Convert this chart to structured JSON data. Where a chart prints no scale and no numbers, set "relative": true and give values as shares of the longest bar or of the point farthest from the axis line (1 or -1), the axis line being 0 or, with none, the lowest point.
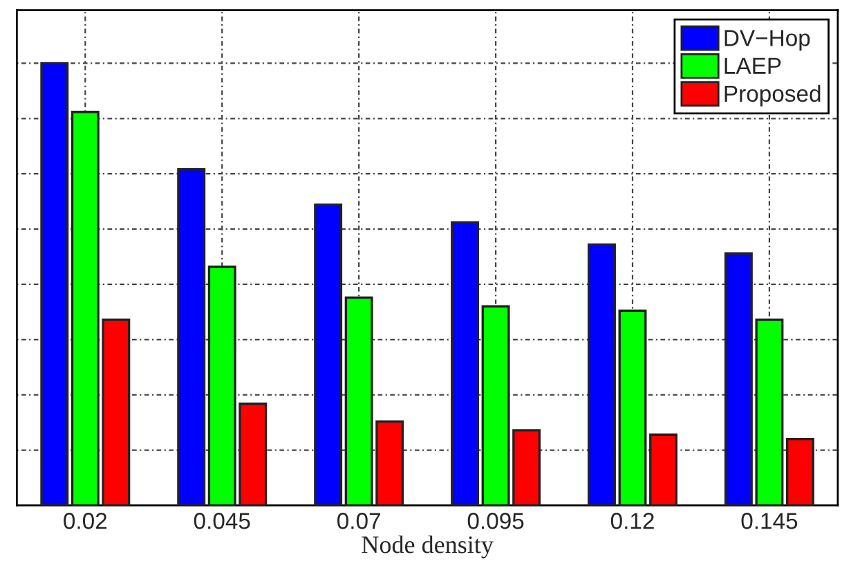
{
  "chart_data": {
    "type": "bar",
    "xlabel": "Node density",
    "categories": [
      "0.02",
      "0.045",
      "0.07",
      "0.095",
      "0.12",
      "0.145"
    ],
    "relative": true,
    "grid": true,
    "legend": "top right",
    "series": [
      {
        "name": "DV−Hop",
        "color": "#0000ff",
        "values": [
          1.0,
          0.76,
          0.68,
          0.64,
          0.59,
          0.57
        ]
      },
      {
        "name": "LAEP",
        "color": "#00ff00",
        "values": [
          0.89,
          0.54,
          0.47,
          0.45,
          0.44,
          0.42
        ]
      },
      {
        "name": "Proposed",
        "color": "#ff0000",
        "values": [
          0.42,
          0.23,
          0.19,
          0.17,
          0.16,
          0.15
        ]
      }
    ]
  }
}
